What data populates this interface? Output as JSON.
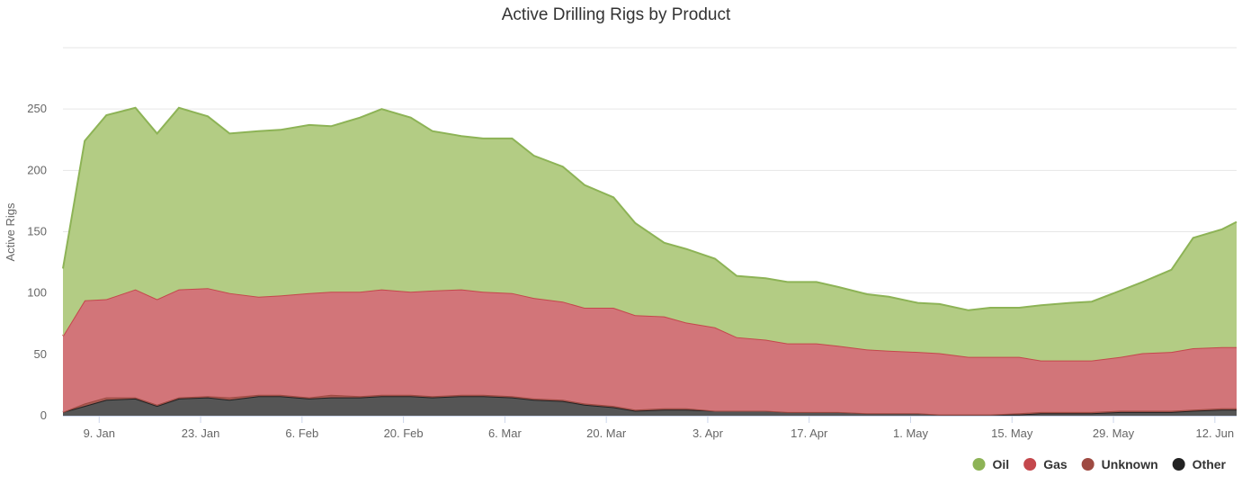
{
  "chart_data": {
    "type": "area",
    "stacked": true,
    "title": "Active Drilling Rigs by Product",
    "ylabel": "Active Rigs",
    "xlabel": "",
    "ylim": [
      0,
      300
    ],
    "y_ticks": [
      0,
      50,
      100,
      150,
      200,
      250
    ],
    "grid": true,
    "legend_position": "bottom-right",
    "x_start": "2023-01-04",
    "x_end": "2023-06-15",
    "x_ticks": [
      {
        "date": "2023-01-09",
        "label": "9. Jan"
      },
      {
        "date": "2023-01-23",
        "label": "23. Jan"
      },
      {
        "date": "2023-02-06",
        "label": "6. Feb"
      },
      {
        "date": "2023-02-20",
        "label": "20. Feb"
      },
      {
        "date": "2023-03-06",
        "label": "6. Mar"
      },
      {
        "date": "2023-03-20",
        "label": "20. Mar"
      },
      {
        "date": "2023-04-03",
        "label": "3. Apr"
      },
      {
        "date": "2023-04-17",
        "label": "17. Apr"
      },
      {
        "date": "2023-05-01",
        "label": "1. May"
      },
      {
        "date": "2023-05-15",
        "label": "15. May"
      },
      {
        "date": "2023-05-29",
        "label": "29. May"
      },
      {
        "date": "2023-06-12",
        "label": "12. Jun"
      }
    ],
    "x": [
      "2023-01-04",
      "2023-01-07",
      "2023-01-10",
      "2023-01-14",
      "2023-01-17",
      "2023-01-20",
      "2023-01-24",
      "2023-01-27",
      "2023-01-31",
      "2023-02-03",
      "2023-02-07",
      "2023-02-10",
      "2023-02-14",
      "2023-02-17",
      "2023-02-21",
      "2023-02-24",
      "2023-02-28",
      "2023-03-03",
      "2023-03-07",
      "2023-03-10",
      "2023-03-14",
      "2023-03-17",
      "2023-03-21",
      "2023-03-24",
      "2023-03-28",
      "2023-03-31",
      "2023-04-04",
      "2023-04-07",
      "2023-04-11",
      "2023-04-14",
      "2023-04-18",
      "2023-04-21",
      "2023-04-25",
      "2023-04-28",
      "2023-05-02",
      "2023-05-05",
      "2023-05-09",
      "2023-05-12",
      "2023-05-16",
      "2023-05-19",
      "2023-05-23",
      "2023-05-26",
      "2023-05-30",
      "2023-06-02",
      "2023-06-06",
      "2023-06-09",
      "2023-06-13",
      "2023-06-15"
    ],
    "series": [
      {
        "name": "Other",
        "color": "#222222",
        "fill": "#555555",
        "values": [
          3,
          8,
          13,
          14,
          8,
          14,
          15,
          13,
          16,
          16,
          14,
          15,
          15,
          16,
          16,
          15,
          16,
          16,
          15,
          13,
          12,
          9,
          7,
          4,
          5,
          5,
          4,
          4,
          4,
          3,
          3,
          3,
          2,
          2,
          2,
          1,
          1,
          1,
          1,
          2,
          2,
          2,
          3,
          3,
          3,
          4,
          5,
          5
        ]
      },
      {
        "name": "Unknown",
        "color": "#9e4a42",
        "fill": "#a85a52",
        "values": [
          0,
          2,
          2,
          1,
          1,
          1,
          1,
          2,
          1,
          1,
          1,
          2,
          1,
          1,
          1,
          1,
          1,
          1,
          1,
          1,
          1,
          1,
          1,
          1,
          1,
          1,
          0,
          0,
          0,
          0,
          0,
          0,
          0,
          0,
          0,
          0,
          0,
          0,
          1,
          1,
          1,
          1,
          1,
          1,
          1,
          1,
          1,
          1
        ]
      },
      {
        "name": "Gas",
        "color": "#c4474c",
        "fill": "#d27579",
        "values": [
          62,
          84,
          80,
          88,
          86,
          88,
          88,
          85,
          80,
          81,
          85,
          84,
          85,
          86,
          84,
          86,
          86,
          84,
          84,
          82,
          80,
          78,
          80,
          77,
          75,
          70,
          68,
          60,
          58,
          56,
          56,
          54,
          52,
          51,
          50,
          50,
          47,
          47,
          46,
          42,
          42,
          42,
          44,
          47,
          48,
          50,
          50,
          50
        ]
      },
      {
        "name": "Oil",
        "color": "#8db356",
        "fill": "#b3cc84",
        "values": [
          55,
          130,
          150,
          148,
          135,
          148,
          140,
          130,
          135,
          135,
          137,
          135,
          142,
          147,
          142,
          130,
          125,
          125,
          126,
          116,
          110,
          100,
          90,
          75,
          60,
          60,
          56,
          50,
          50,
          50,
          50,
          48,
          45,
          44,
          40,
          40,
          38,
          40,
          40,
          45,
          47,
          48,
          54,
          58,
          67,
          90,
          96,
          102
        ]
      }
    ],
    "legend": [
      {
        "name": "Oil",
        "color": "#8db356"
      },
      {
        "name": "Gas",
        "color": "#c4474c"
      },
      {
        "name": "Unknown",
        "color": "#9e4a42"
      },
      {
        "name": "Other",
        "color": "#222222"
      }
    ]
  }
}
